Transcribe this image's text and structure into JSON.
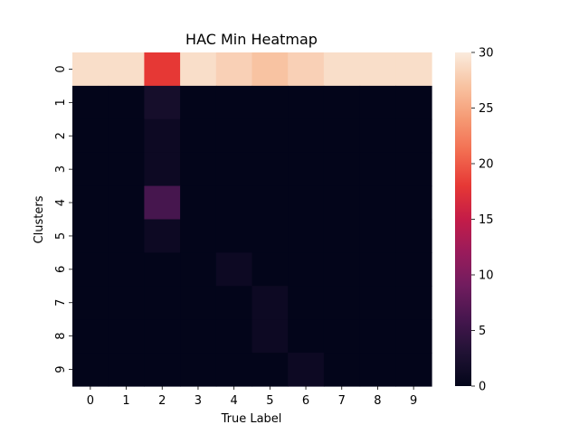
{
  "chart_data": {
    "type": "heatmap",
    "title": "HAC Min Heatmap",
    "xlabel": "True Label",
    "ylabel": "Clusters",
    "x_categories": [
      "0",
      "1",
      "2",
      "3",
      "4",
      "5",
      "6",
      "7",
      "8",
      "9"
    ],
    "y_categories": [
      "0",
      "1",
      "2",
      "3",
      "4",
      "5",
      "6",
      "7",
      "8",
      "9"
    ],
    "values": [
      [
        29,
        29,
        18,
        29,
        28,
        27,
        28,
        29,
        29,
        29
      ],
      [
        0,
        0,
        2,
        0,
        0,
        0,
        0,
        0,
        0,
        0
      ],
      [
        0,
        0,
        1,
        0,
        0,
        0,
        0,
        0,
        0,
        0
      ],
      [
        0,
        0,
        1,
        0,
        0,
        0,
        0,
        0,
        0,
        0
      ],
      [
        0,
        0,
        6,
        0,
        0,
        0,
        0,
        0,
        0,
        0
      ],
      [
        0,
        0,
        1,
        0,
        0,
        0,
        0,
        0,
        0,
        0
      ],
      [
        0,
        0,
        0,
        0,
        1,
        0,
        0,
        0,
        0,
        0
      ],
      [
        0,
        0,
        0,
        0,
        0,
        1,
        0,
        0,
        0,
        0
      ],
      [
        0,
        0,
        0,
        0,
        0,
        1,
        0,
        0,
        0,
        0
      ],
      [
        0,
        0,
        0,
        0,
        0,
        0,
        1,
        0,
        0,
        0
      ]
    ],
    "colorbar": {
      "vmin": 0,
      "vmax": 30,
      "ticks": [
        0,
        5,
        10,
        15,
        20,
        25,
        30
      ],
      "colormap": "rocket"
    },
    "grid": false
  }
}
